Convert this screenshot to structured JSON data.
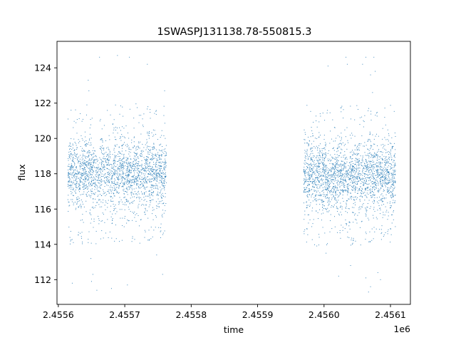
{
  "chart_data": {
    "type": "scatter",
    "title": "1SWASPJ131138.78-550815.3",
    "xlabel": "time",
    "ylabel": "flux",
    "x_offset_label": "1e6",
    "x_scale_multiplier": 1000000,
    "xlim": [
      2455598,
      2456130
    ],
    "ylim": [
      110.6,
      125.5
    ],
    "x_ticks": [
      2.4556,
      2.4557,
      2.4558,
      2.4559,
      2.456,
      2.4561
    ],
    "x_tick_labels": [
      "2.4556",
      "2.4557",
      "2.4558",
      "2.4559",
      "2.4560",
      "2.4561"
    ],
    "y_ticks": [
      112,
      114,
      116,
      118,
      120,
      122,
      124
    ],
    "y_tick_labels": [
      "112",
      "114",
      "116",
      "118",
      "120",
      "122",
      "124"
    ],
    "grid": false,
    "marker_color": "#1f77b4",
    "series": [
      {
        "segments": [
          {
            "x_start": 2455615,
            "x_end": 2455762,
            "median_flux": 118.0,
            "spread": 1.2
          },
          {
            "x_start": 2455970,
            "x_end": 2456107,
            "median_flux": 117.9,
            "spread": 1.2
          }
        ],
        "points": [
          {
            "x": 2455645,
            "y": 123.3
          },
          {
            "x": 2455646,
            "y": 122.7
          },
          {
            "x": 2455643,
            "y": 121.9
          },
          {
            "x": 2455662,
            "y": 124.6
          },
          {
            "x": 2455689,
            "y": 124.7
          },
          {
            "x": 2455707,
            "y": 124.6
          },
          {
            "x": 2455734,
            "y": 124.2
          },
          {
            "x": 2455760,
            "y": 122.7
          },
          {
            "x": 2455650,
            "y": 111.9
          },
          {
            "x": 2455652,
            "y": 112.3
          },
          {
            "x": 2455658,
            "y": 111.4
          },
          {
            "x": 2455680,
            "y": 111.5
          },
          {
            "x": 2455704,
            "y": 111.7
          },
          {
            "x": 2455757,
            "y": 112.3
          },
          {
            "x": 2455621,
            "y": 111.8
          },
          {
            "x": 2455645,
            "y": 114.1
          },
          {
            "x": 2455649,
            "y": 113.2
          },
          {
            "x": 2455748,
            "y": 113.4
          },
          {
            "x": 2456033,
            "y": 124.6
          },
          {
            "x": 2456035,
            "y": 124.2
          },
          {
            "x": 2456058,
            "y": 124.2
          },
          {
            "x": 2456063,
            "y": 124.6
          },
          {
            "x": 2456070,
            "y": 123.6
          },
          {
            "x": 2456075,
            "y": 124.6
          },
          {
            "x": 2456077,
            "y": 123.8
          },
          {
            "x": 2456073,
            "y": 122.6
          },
          {
            "x": 2456006,
            "y": 124.1
          },
          {
            "x": 2456067,
            "y": 111.3
          },
          {
            "x": 2456070,
            "y": 111.6
          },
          {
            "x": 2456063,
            "y": 112.1
          },
          {
            "x": 2456022,
            "y": 112.2
          },
          {
            "x": 2456081,
            "y": 112.4
          },
          {
            "x": 2456085,
            "y": 112.0
          },
          {
            "x": 2456003,
            "y": 113.5
          },
          {
            "x": 2456040,
            "y": 112.8
          }
        ]
      }
    ]
  }
}
